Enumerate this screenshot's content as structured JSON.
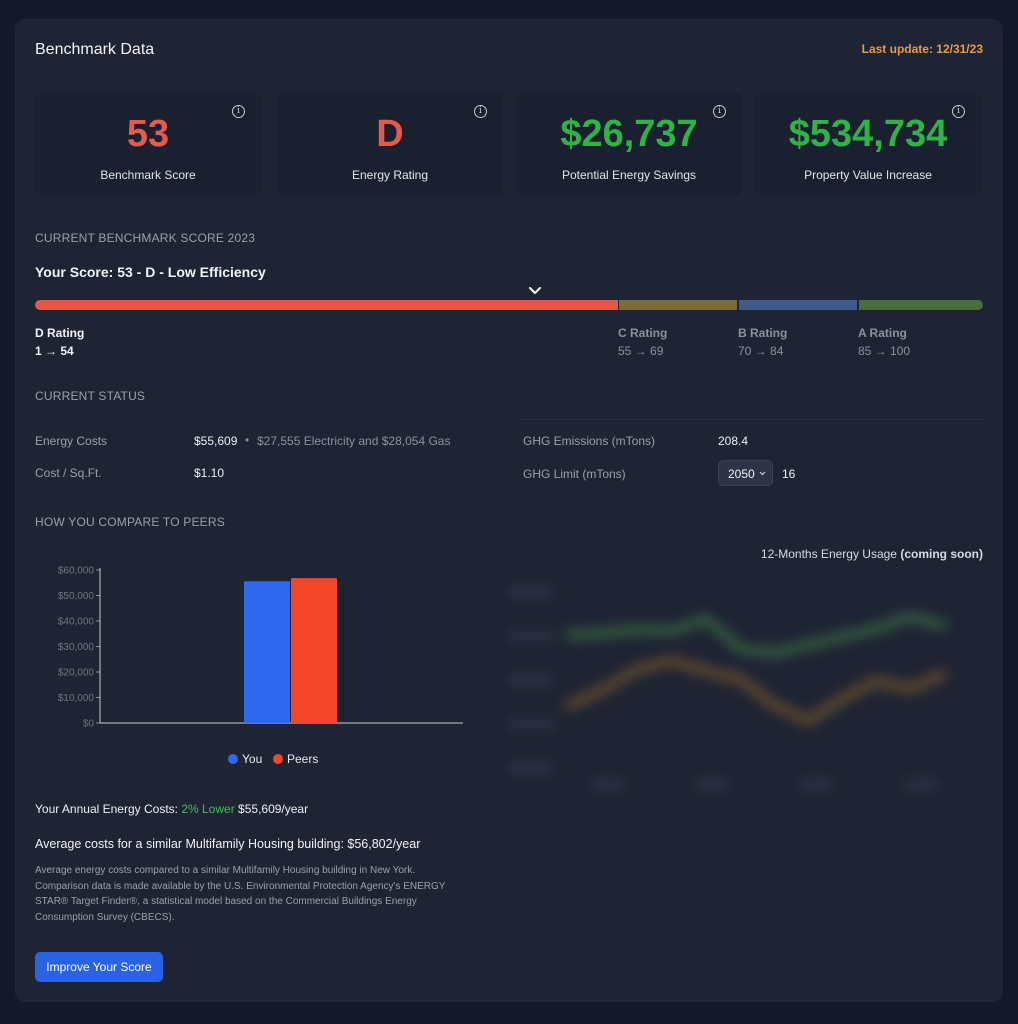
{
  "header": {
    "title": "Benchmark Data",
    "last_update": "Last update: 12/31/23"
  },
  "cards": [
    {
      "value": "53",
      "label": "Benchmark Score",
      "info_icon": "i"
    },
    {
      "value": "D",
      "label": "Energy Rating",
      "info_icon": "i"
    },
    {
      "value": "$26,737",
      "label": "Potential Energy Savings",
      "info_icon": "i"
    },
    {
      "value": "$534,734",
      "label": "Property Value Increase",
      "info_icon": "i"
    }
  ],
  "colors": {
    "bad": "#e25b4b",
    "good": "#2fb347",
    "accent": "#2a62e4",
    "orange": "#e89a45"
  },
  "benchmark": {
    "section_title": "CURRENT BENCHMARK SCORE 2023",
    "score_line": "Your Score: 53 - D - Low Efficiency",
    "score": 53,
    "ratings": [
      {
        "label": "D Rating",
        "range": "1 → 54",
        "color": "#e05a45"
      },
      {
        "label": "C Rating",
        "range": "55 → 69",
        "color": "#7b6a3a"
      },
      {
        "label": "B Rating",
        "range": "70 → 84",
        "color": "#3e5b8c"
      },
      {
        "label": "A Rating",
        "range": "85 → 100",
        "color": "#4a6e3e"
      }
    ]
  },
  "status": {
    "section_title": "CURRENT STATUS",
    "energy_costs_label": "Energy Costs",
    "energy_costs_value": "$55,609",
    "energy_costs_detail": "$27,555 Electricity and $28,054 Gas",
    "cost_sqft_label": "Cost / Sq.Ft.",
    "cost_sqft_value": "$1.10",
    "ghg_emissions_label": "GHG Emissions (mTons)",
    "ghg_emissions_value": "208.4",
    "ghg_limit_label": "GHG Limit (mTons)",
    "ghg_limit_year": "2050",
    "ghg_limit_value": "16"
  },
  "peers": {
    "section_title": "HOW YOU COMPARE TO PEERS",
    "usage_title": "12-Months Energy Usage",
    "usage_suffix": "(coming soon)",
    "annual_prefix": "Your Annual Energy Costs:",
    "annual_delta": "2% Lower",
    "annual_value": "$55,609/year",
    "average_line": "Average costs for a similar Multifamily Housing building: $56,802/year",
    "note": "Average energy costs compared to a similar Multifamily Housing building in New York. Comparison data is made available by the U.S. Environmental Protection Agency's ENERGY STAR® Target Finder®, a statistical model based on the Commercial Buildings Energy Consumption Survey (CBECS).",
    "button": "Improve Your Score"
  },
  "chart_data": {
    "type": "bar",
    "categories": [
      ""
    ],
    "series": [
      {
        "name": "You",
        "values": [
          55609
        ],
        "color": "#2e68f0"
      },
      {
        "name": "Peers",
        "values": [
          56802
        ],
        "color": "#f4472a"
      }
    ],
    "yticks": [
      "$0",
      "$10,000",
      "$20,000",
      "$30,000",
      "$40,000",
      "$50,000",
      "$60,000"
    ],
    "ylim": [
      0,
      60000
    ],
    "legend": "bottom"
  }
}
